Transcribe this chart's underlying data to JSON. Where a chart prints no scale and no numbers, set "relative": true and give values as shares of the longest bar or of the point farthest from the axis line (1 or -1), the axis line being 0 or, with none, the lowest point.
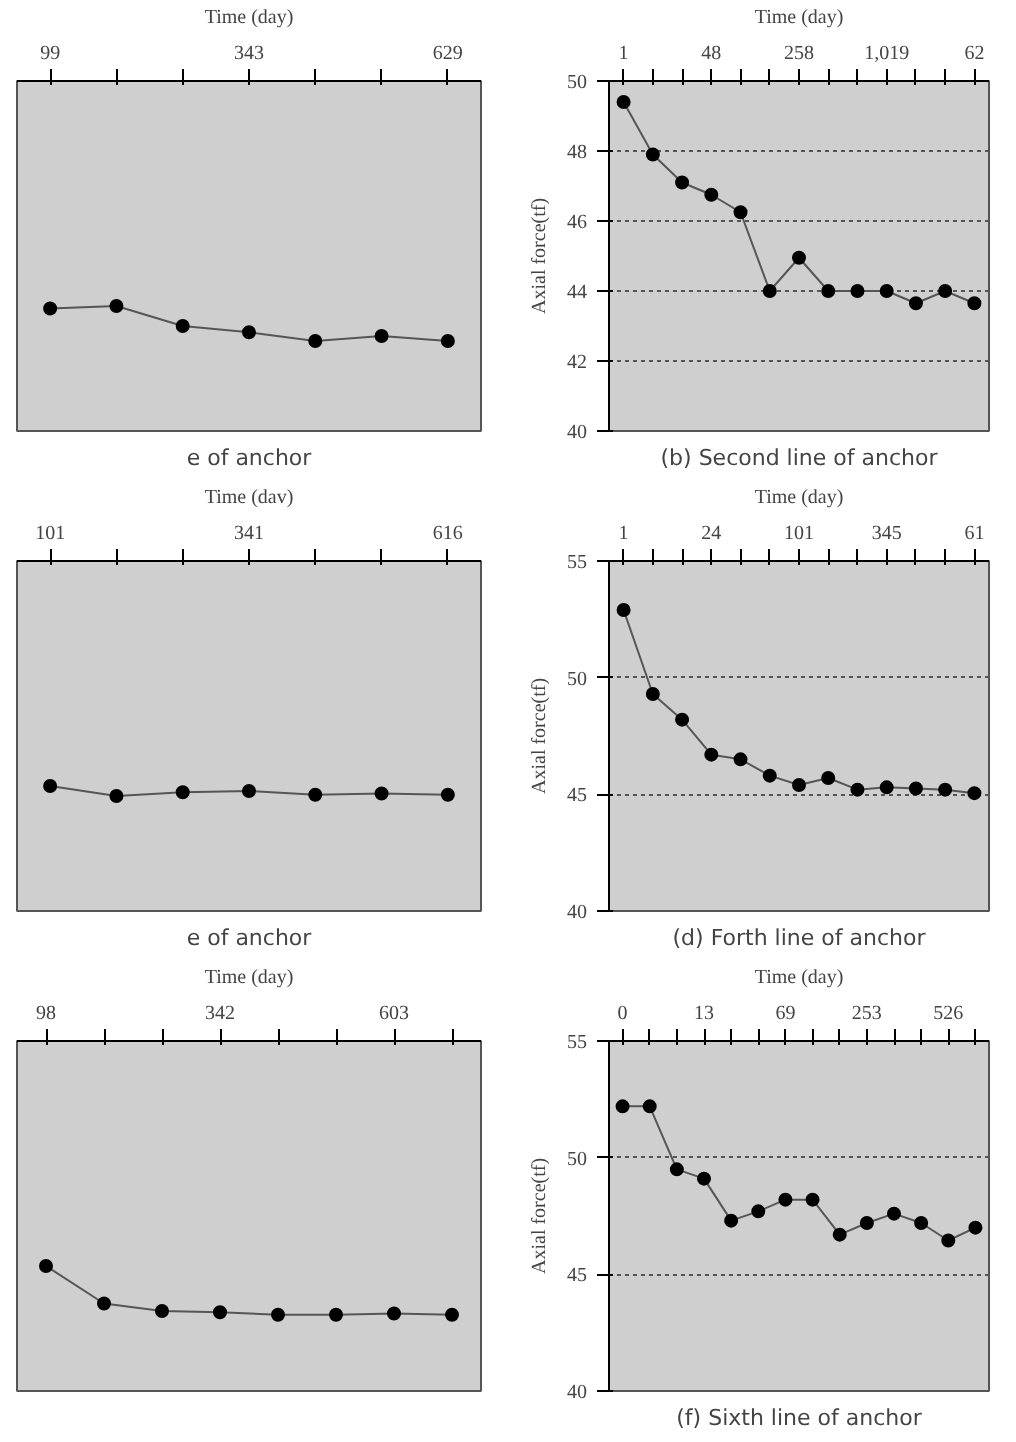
{
  "chart_data": [
    {
      "type": "line",
      "title": "e of anchor",
      "xlabel": "Time (day)",
      "relative": true,
      "categories": [
        "99",
        null,
        null,
        "343",
        null,
        null,
        "629"
      ],
      "series": [
        {
          "color": "#000000",
          "values": [
            0.98,
            1,
            0.84,
            0.79,
            0.72,
            0.76,
            0.72
          ]
        }
      ],
      "marker": "circle",
      "line_style": "solid",
      "tick_labels": "x"
    },
    {
      "type": "line",
      "title": "(b) Second line of anchor",
      "xlabel": "Time (day)",
      "ylabel": "Axial force(tf)",
      "categories": [
        "1",
        null,
        null,
        "48",
        null,
        null,
        "258",
        null,
        null,
        "1,019",
        null,
        null,
        "62"
      ],
      "series": [
        {
          "color": "#000000",
          "values": [
            49.4,
            47.9,
            47.1,
            46.75,
            46.25,
            44.0,
            44.95,
            44.0,
            44.0,
            44.0,
            43.65,
            44.0,
            43.65
          ]
        }
      ],
      "ylim": [
        40,
        50
      ],
      "yticks": [
        40,
        42,
        44,
        46,
        48,
        50
      ],
      "grid": "y",
      "marker": "circle",
      "line_style": "solid"
    },
    {
      "type": "line",
      "title": "e of anchor",
      "xlabel": "Time (dav)",
      "relative": true,
      "categories": [
        "101",
        null,
        null,
        "341",
        null,
        null,
        "616"
      ],
      "series": [
        {
          "color": "#000000",
          "values": [
            1,
            0.92,
            0.95,
            0.96,
            0.93,
            0.94,
            0.93
          ]
        }
      ],
      "marker": "circle",
      "line_style": "solid",
      "tick_labels": "x"
    },
    {
      "type": "line",
      "title": "(d) Forth line of anchor",
      "xlabel": "Time (day)",
      "ylabel": "Axial force(tf)",
      "categories": [
        "1",
        null,
        null,
        "24",
        null,
        null,
        "101",
        null,
        null,
        "345",
        null,
        null,
        "61"
      ],
      "series": [
        {
          "color": "#000000",
          "values": [
            52.9,
            49.3,
            48.2,
            46.7,
            46.5,
            45.8,
            45.4,
            45.7,
            45.2,
            45.3,
            45.25,
            45.2,
            45.05
          ]
        }
      ],
      "ylim": [
        40,
        55
      ],
      "yticks": [
        40,
        45,
        50,
        55
      ],
      "grid": "y",
      "marker": "circle",
      "line_style": "solid"
    },
    {
      "type": "line",
      "xlabel": "Time (day)",
      "relative": true,
      "categories": [
        "98",
        null,
        null,
        "342",
        null,
        null,
        "603",
        null
      ],
      "series": [
        {
          "color": "#000000",
          "values": [
            1,
            0.7,
            0.64,
            0.63,
            0.61,
            0.61,
            0.62,
            0.61
          ]
        }
      ],
      "marker": "circle",
      "line_style": "solid",
      "tick_labels": "x"
    },
    {
      "type": "line",
      "title": "(f) Sixth line of anchor",
      "xlabel": "Time (day)",
      "ylabel": "Axial force(tf)",
      "categories": [
        "0",
        null,
        null,
        "13",
        null,
        null,
        "69",
        null,
        null,
        "253",
        null,
        null,
        "526",
        null
      ],
      "series": [
        {
          "color": "#000000",
          "values": [
            52.2,
            52.2,
            49.5,
            49.1,
            47.3,
            47.7,
            48.2,
            48.2,
            46.7,
            47.2,
            47.6,
            47.2,
            46.45,
            47.0
          ]
        }
      ],
      "ylim": [
        40,
        55
      ],
      "yticks": [
        40,
        45,
        50,
        55
      ],
      "grid": "y",
      "marker": "circle",
      "line_style": "solid"
    }
  ]
}
